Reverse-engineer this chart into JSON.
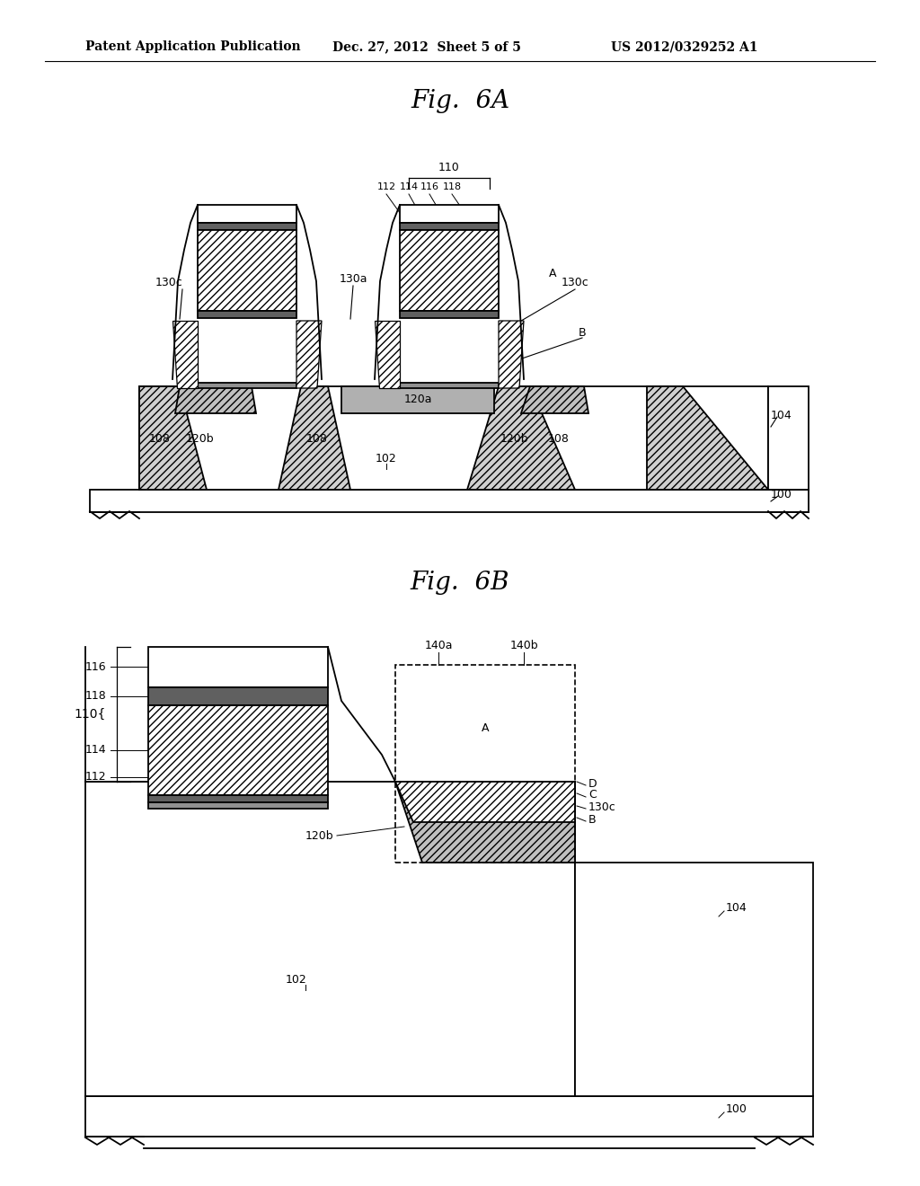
{
  "bg_color": "#ffffff",
  "header_text": "Patent Application Publication",
  "header_date": "Dec. 27, 2012  Sheet 5 of 5",
  "header_patent": "US 2012/0329252 A1",
  "fig6a_title": "Fig.  6A",
  "fig6b_title": "Fig.  6B",
  "lw": 1.3,
  "thin": 0.9
}
